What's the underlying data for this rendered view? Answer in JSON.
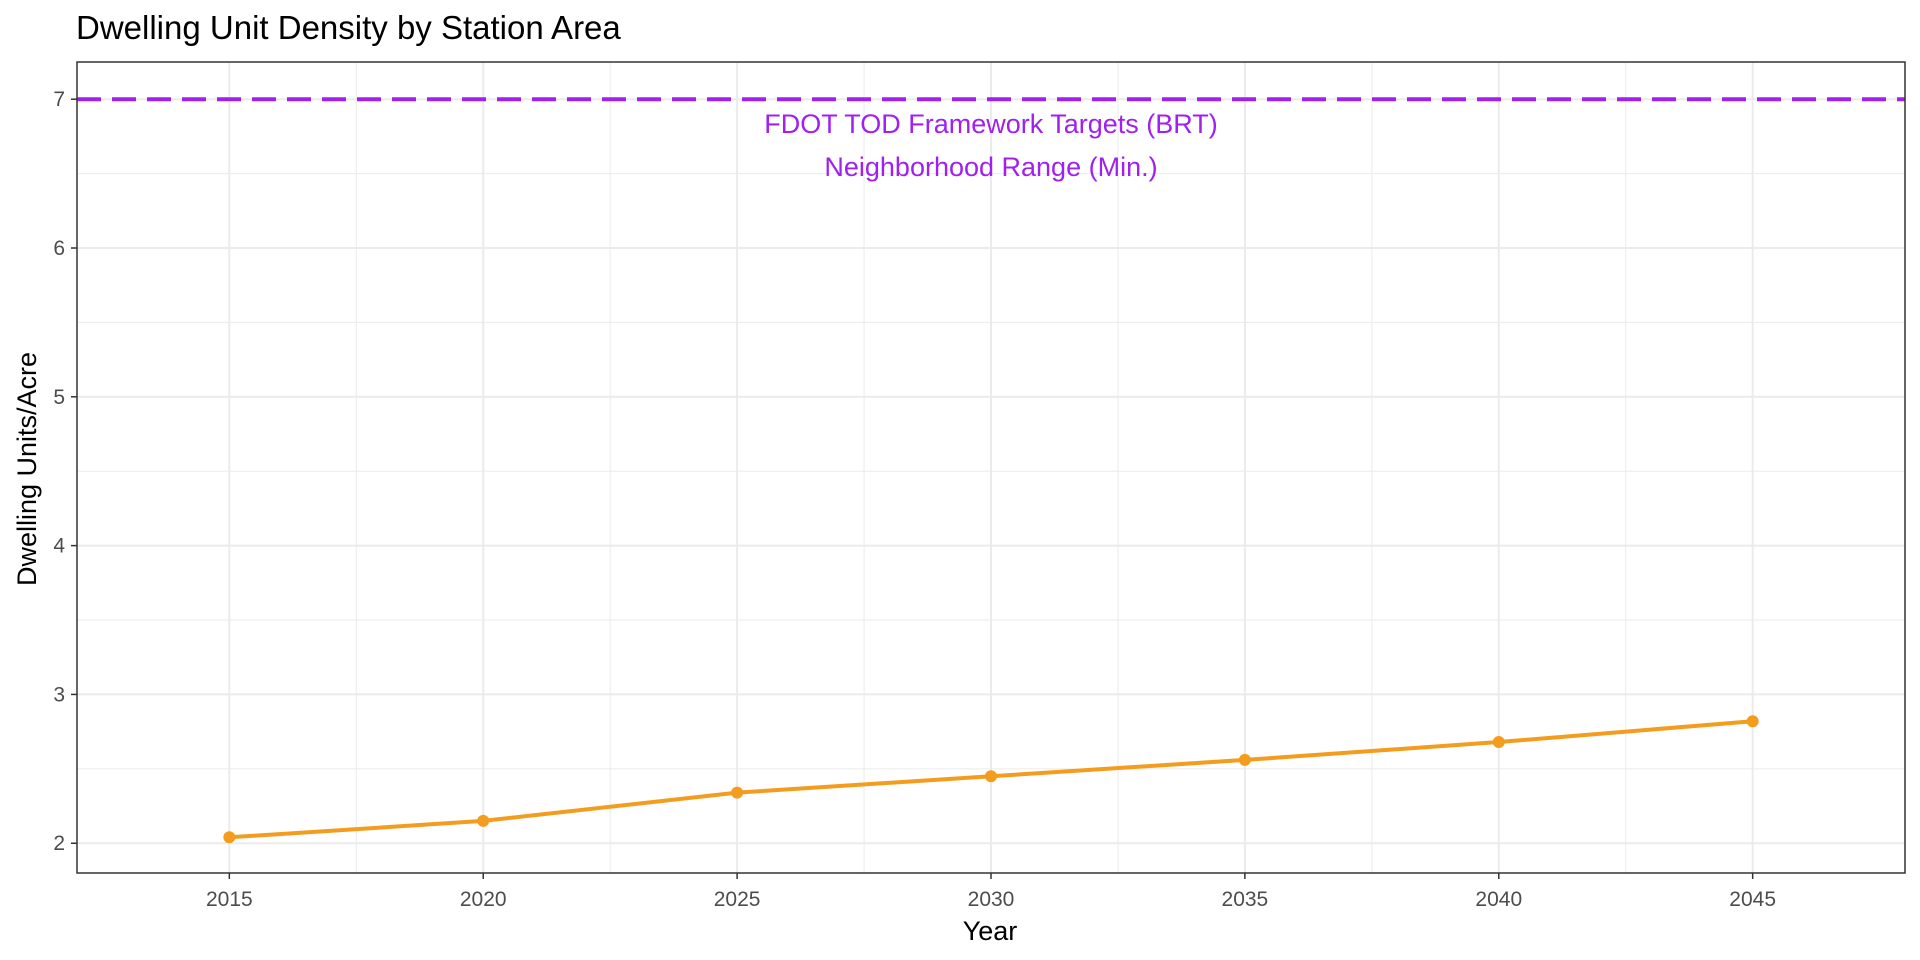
{
  "chart_data": {
    "type": "line",
    "title": "Dwelling Unit Density by Station Area",
    "xlabel": "Year",
    "ylabel": "Dwelling Units/Acre",
    "x": [
      2015,
      2020,
      2025,
      2030,
      2035,
      2040,
      2045
    ],
    "x_ticks": [
      "2015",
      "2020",
      "2025",
      "2030",
      "2035",
      "2040",
      "2045"
    ],
    "y_ticks": [
      "2",
      "3",
      "4",
      "5",
      "6",
      "7"
    ],
    "xlim": [
      2012,
      2048
    ],
    "ylim": [
      1.8,
      7.25
    ],
    "grid": true,
    "legend": "none",
    "series": [
      {
        "values": [
          2.04,
          2.15,
          2.34,
          2.45,
          2.56,
          2.68,
          2.82
        ],
        "color": "#f39c1d",
        "markers": true
      }
    ],
    "reference_lines": [
      {
        "y": 7,
        "style": "dashed",
        "color": "#a020f0",
        "label_lines": [
          "FDOT TOD Framework Targets (BRT)",
          "Neighborhood Range (Min.)"
        ]
      }
    ]
  },
  "colors": {
    "background": "#ffffff",
    "grid": "#ebebeb",
    "panel_border": "#333333",
    "series": "#f39c1d",
    "target": "#a020f0"
  }
}
